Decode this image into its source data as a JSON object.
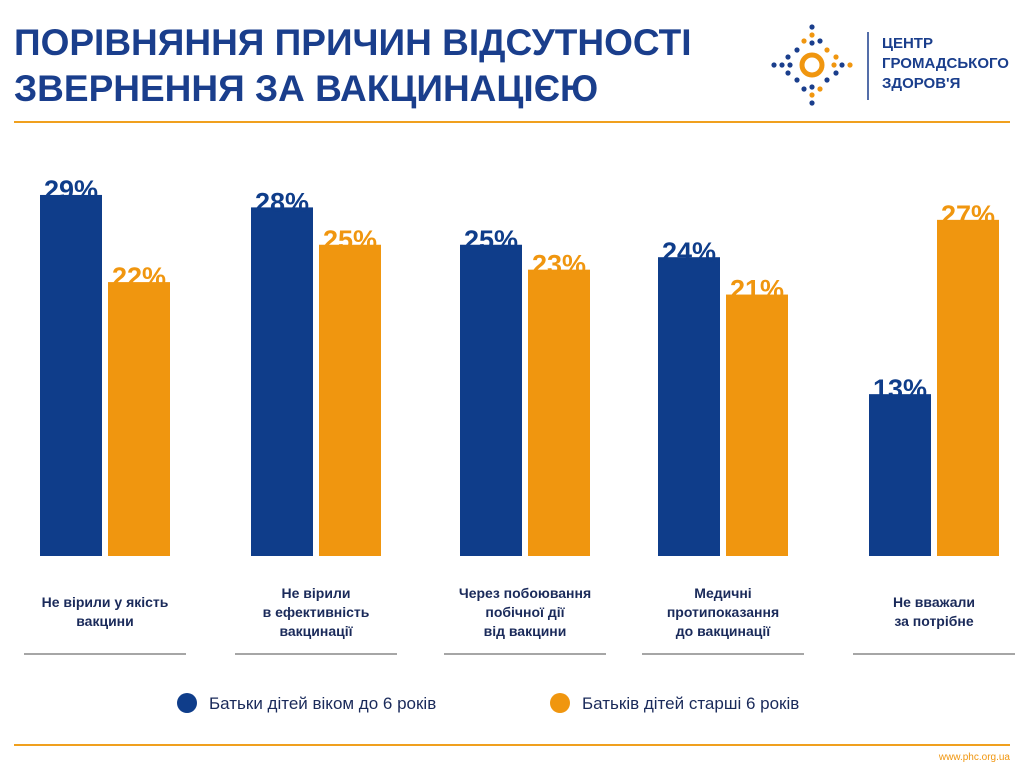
{
  "header": {
    "title": [
      "ПОРІВНЯННЯ ПРИЧИН ВІДСУТНОСТІ",
      "ЗВЕРНЕННЯ ЗА ВАКЦИНАЦІЄЮ"
    ],
    "logo_text": [
      "ЦЕНТР",
      "ГРОМАДСЬКОГО",
      "ЗДОРОВ'Я"
    ]
  },
  "chart_data": {
    "type": "bar",
    "categories": [
      "Не вірили у якість\nвакцини",
      "Не вірили\nв ефективність\nвакцинації",
      "Через побоювання\nпобічної дії\nвід вакцини",
      "Медичні\nпротипоказання\nдо вакцинації",
      "Не вважали\nза потрібне"
    ],
    "series": [
      {
        "name": "Батьки дітей віком до 6 років",
        "color": "#0f3d8a",
        "values": [
          29,
          28,
          25,
          24,
          13
        ],
        "value_labels": [
          "29%",
          "28%",
          "25%",
          "24%",
          "13%"
        ]
      },
      {
        "name": "Батьків дітей старші 6 років",
        "color": "#f0960f",
        "values": [
          22,
          25,
          23,
          21,
          27
        ],
        "value_labels": [
          "22%",
          "25%",
          "23%",
          "21%",
          "27%"
        ]
      }
    ],
    "legend": "bottom"
  },
  "footer": {
    "url": "www.phc.org.ua"
  }
}
